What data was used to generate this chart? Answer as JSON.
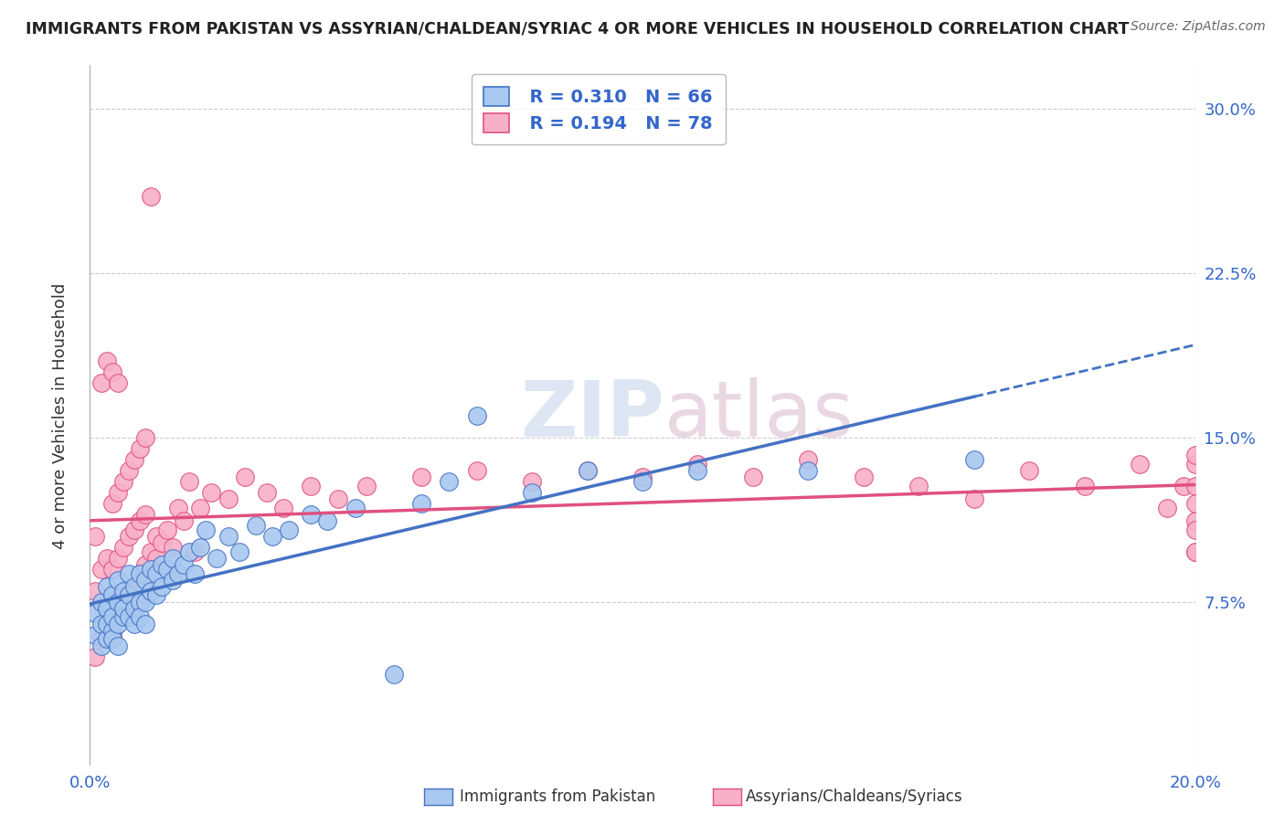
{
  "title": "IMMIGRANTS FROM PAKISTAN VS ASSYRIAN/CHALDEAN/SYRIAC 4 OR MORE VEHICLES IN HOUSEHOLD CORRELATION CHART",
  "source": "Source: ZipAtlas.com",
  "ylabel": "4 or more Vehicles in Household",
  "xlim": [
    0.0,
    0.2
  ],
  "ylim": [
    0.0,
    0.32
  ],
  "xticks": [
    0.0,
    0.05,
    0.1,
    0.15,
    0.2
  ],
  "xticklabels": [
    "0.0%",
    "",
    "",
    "",
    "20.0%"
  ],
  "yticks": [
    0.0,
    0.075,
    0.15,
    0.225,
    0.3
  ],
  "yticklabels": [
    "",
    "7.5%",
    "15.0%",
    "22.5%",
    "30.0%"
  ],
  "color_blue": "#A8C8F0",
  "color_pink": "#F8B0C8",
  "line_blue": "#4472C4",
  "line_pink": "#E05080",
  "bg_color": "#FFFFFF",
  "label1": "Immigrants from Pakistan",
  "label2": "Assyrians/Chaldeans/Syriacs",
  "blue_points_x": [
    0.001,
    0.001,
    0.002,
    0.002,
    0.002,
    0.003,
    0.003,
    0.003,
    0.003,
    0.004,
    0.004,
    0.004,
    0.004,
    0.005,
    0.005,
    0.005,
    0.005,
    0.006,
    0.006,
    0.006,
    0.007,
    0.007,
    0.007,
    0.008,
    0.008,
    0.008,
    0.009,
    0.009,
    0.009,
    0.01,
    0.01,
    0.01,
    0.011,
    0.011,
    0.012,
    0.012,
    0.013,
    0.013,
    0.014,
    0.015,
    0.015,
    0.016,
    0.017,
    0.018,
    0.019,
    0.02,
    0.021,
    0.023,
    0.025,
    0.027,
    0.03,
    0.033,
    0.036,
    0.04,
    0.043,
    0.048,
    0.055,
    0.06,
    0.065,
    0.07,
    0.08,
    0.09,
    0.1,
    0.11,
    0.13,
    0.16
  ],
  "blue_points_y": [
    0.06,
    0.07,
    0.055,
    0.075,
    0.065,
    0.058,
    0.072,
    0.082,
    0.065,
    0.062,
    0.078,
    0.068,
    0.058,
    0.075,
    0.085,
    0.065,
    0.055,
    0.08,
    0.068,
    0.072,
    0.078,
    0.088,
    0.068,
    0.082,
    0.072,
    0.065,
    0.088,
    0.075,
    0.068,
    0.085,
    0.075,
    0.065,
    0.09,
    0.08,
    0.088,
    0.078,
    0.092,
    0.082,
    0.09,
    0.085,
    0.095,
    0.088,
    0.092,
    0.098,
    0.088,
    0.1,
    0.108,
    0.095,
    0.105,
    0.098,
    0.11,
    0.105,
    0.108,
    0.115,
    0.112,
    0.118,
    0.042,
    0.12,
    0.13,
    0.16,
    0.125,
    0.135,
    0.13,
    0.135,
    0.135,
    0.14
  ],
  "pink_points_x": [
    0.001,
    0.001,
    0.001,
    0.002,
    0.002,
    0.002,
    0.003,
    0.003,
    0.003,
    0.003,
    0.004,
    0.004,
    0.004,
    0.004,
    0.005,
    0.005,
    0.005,
    0.005,
    0.006,
    0.006,
    0.006,
    0.007,
    0.007,
    0.007,
    0.008,
    0.008,
    0.008,
    0.008,
    0.009,
    0.009,
    0.009,
    0.01,
    0.01,
    0.01,
    0.011,
    0.011,
    0.012,
    0.012,
    0.013,
    0.014,
    0.015,
    0.016,
    0.017,
    0.018,
    0.019,
    0.02,
    0.022,
    0.025,
    0.028,
    0.032,
    0.035,
    0.04,
    0.045,
    0.05,
    0.06,
    0.07,
    0.08,
    0.09,
    0.1,
    0.11,
    0.12,
    0.13,
    0.14,
    0.15,
    0.16,
    0.17,
    0.18,
    0.19,
    0.195,
    0.198,
    0.2,
    0.2,
    0.2,
    0.2,
    0.2,
    0.2,
    0.2,
    0.2
  ],
  "pink_points_y": [
    0.05,
    0.08,
    0.105,
    0.058,
    0.09,
    0.175,
    0.065,
    0.095,
    0.185,
    0.072,
    0.06,
    0.09,
    0.12,
    0.18,
    0.068,
    0.095,
    0.125,
    0.175,
    0.072,
    0.1,
    0.13,
    0.078,
    0.105,
    0.135,
    0.082,
    0.108,
    0.07,
    0.14,
    0.088,
    0.112,
    0.145,
    0.092,
    0.115,
    0.15,
    0.098,
    0.26,
    0.105,
    0.095,
    0.102,
    0.108,
    0.1,
    0.118,
    0.112,
    0.13,
    0.098,
    0.118,
    0.125,
    0.122,
    0.132,
    0.125,
    0.118,
    0.128,
    0.122,
    0.128,
    0.132,
    0.135,
    0.13,
    0.135,
    0.132,
    0.138,
    0.132,
    0.14,
    0.132,
    0.128,
    0.122,
    0.135,
    0.128,
    0.138,
    0.118,
    0.128,
    0.112,
    0.098,
    0.128,
    0.108,
    0.138,
    0.12,
    0.098,
    0.142
  ]
}
